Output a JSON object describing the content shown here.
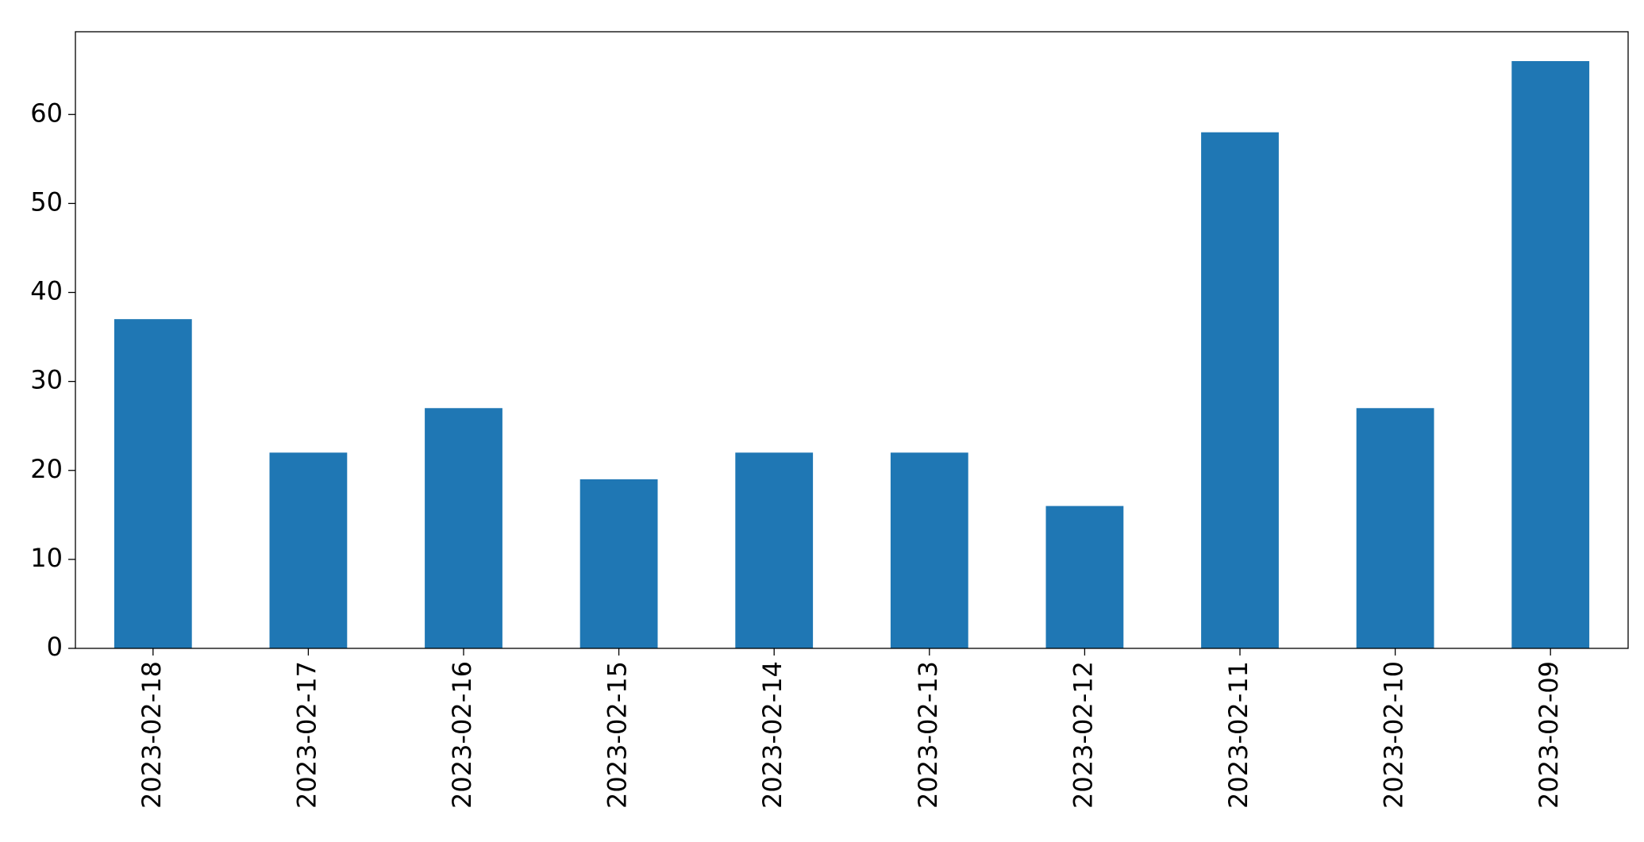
{
  "chart_data": {
    "type": "bar",
    "categories": [
      "2023-02-18",
      "2023-02-17",
      "2023-02-16",
      "2023-02-15",
      "2023-02-14",
      "2023-02-13",
      "2023-02-12",
      "2023-02-11",
      "2023-02-10",
      "2023-02-09"
    ],
    "values": [
      37,
      22,
      27,
      19,
      22,
      22,
      16,
      58,
      27,
      66
    ],
    "color": "#1f77b4",
    "ylim": [
      0,
      69.3
    ],
    "yticks": [
      0,
      10,
      20,
      30,
      40,
      50,
      60
    ],
    "grid": false
  }
}
